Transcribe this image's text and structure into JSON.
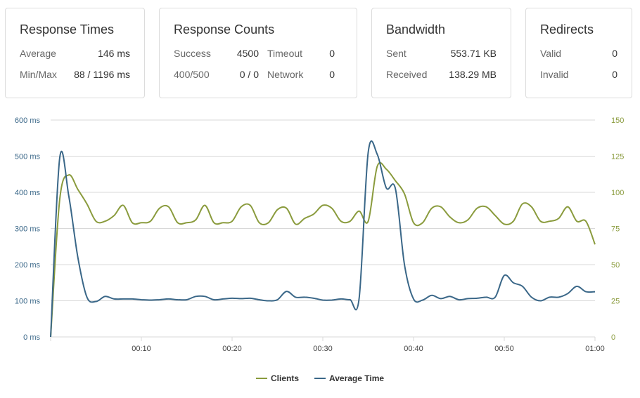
{
  "cards": {
    "response_times": {
      "title": "Response Times",
      "average_label": "Average",
      "average_value": "146 ms",
      "minmax_label": "Min/Max",
      "minmax_value": "88 / 1196 ms"
    },
    "response_counts": {
      "title": "Response Counts",
      "success_label": "Success",
      "success_value": "4500",
      "timeout_label": "Timeout",
      "timeout_value": "0",
      "errors_label": "400/500",
      "errors_value": "0 / 0",
      "network_label": "Network",
      "network_value": "0"
    },
    "bandwidth": {
      "title": "Bandwidth",
      "sent_label": "Sent",
      "sent_value": "553.71 KB",
      "received_label": "Received",
      "received_value": "138.29 MB"
    },
    "redirects": {
      "title": "Redirects",
      "valid_label": "Valid",
      "valid_value": "0",
      "invalid_label": "Invalid",
      "invalid_value": "0"
    }
  },
  "chart_data": {
    "type": "line",
    "x_ticks": [
      "00:10",
      "00:20",
      "00:30",
      "00:40",
      "00:50",
      "01:00"
    ],
    "xlim": [
      0,
      60
    ],
    "y_left": {
      "ticks": [
        "0 ms",
        "100 ms",
        "200 ms",
        "300 ms",
        "400 ms",
        "500 ms",
        "600 ms"
      ],
      "lim": [
        0,
        600
      ]
    },
    "y_right": {
      "ticks": [
        "0",
        "25",
        "50",
        "75",
        "100",
        "125",
        "150"
      ],
      "lim": [
        0,
        150
      ]
    },
    "grid": true,
    "legend_position": "bottom",
    "colors": {
      "clients": "#8a9b3d",
      "average_time": "#3a6788",
      "grid": "#d8d8d8",
      "left_axis_text": "#3a6788",
      "right_axis_text": "#8a9b3d"
    },
    "series": [
      {
        "name": "Clients",
        "axis": "right",
        "x": [
          0,
          1,
          2,
          3,
          4,
          5,
          6,
          7,
          8,
          9,
          10,
          11,
          12,
          13,
          14,
          15,
          16,
          17,
          18,
          19,
          20,
          21,
          22,
          23,
          24,
          25,
          26,
          27,
          28,
          29,
          30,
          31,
          32,
          33,
          34,
          35,
          36,
          37,
          38,
          39,
          40,
          41,
          42,
          43,
          44,
          45,
          46,
          47,
          48,
          49,
          50,
          51,
          52,
          53,
          54,
          55,
          56,
          57,
          58,
          59,
          60
        ],
        "y": [
          0,
          95,
          112,
          102,
          92,
          80,
          80,
          84,
          91,
          79,
          79,
          80,
          89,
          90,
          79,
          79,
          81,
          91,
          79,
          79,
          80,
          90,
          91,
          79,
          79,
          88,
          89,
          78,
          82,
          85,
          91,
          89,
          80,
          80,
          87,
          80,
          118,
          116,
          108,
          99,
          79,
          79,
          89,
          90,
          83,
          79,
          81,
          89,
          90,
          84,
          78,
          80,
          92,
          90,
          80,
          80,
          82,
          90,
          80,
          80,
          64
        ]
      },
      {
        "name": "Average Time",
        "axis": "left",
        "x": [
          0,
          1,
          2,
          3,
          4,
          5,
          6,
          7,
          8,
          9,
          10,
          11,
          12,
          13,
          14,
          15,
          16,
          17,
          18,
          19,
          20,
          21,
          22,
          23,
          24,
          25,
          26,
          27,
          28,
          29,
          30,
          31,
          32,
          33,
          34,
          35,
          36,
          37,
          38,
          39,
          40,
          41,
          42,
          43,
          44,
          45,
          46,
          47,
          48,
          49,
          50,
          51,
          52,
          53,
          54,
          55,
          56,
          57,
          58,
          59,
          60
        ],
        "y": [
          0,
          495,
          390,
          220,
          110,
          98,
          112,
          105,
          105,
          105,
          103,
          102,
          103,
          105,
          103,
          103,
          112,
          112,
          103,
          105,
          107,
          106,
          107,
          103,
          100,
          103,
          126,
          110,
          110,
          107,
          102,
          102,
          105,
          103,
          106,
          510,
          505,
          412,
          410,
          200,
          105,
          102,
          115,
          106,
          112,
          103,
          106,
          107,
          110,
          110,
          170,
          150,
          140,
          110,
          100,
          110,
          110,
          120,
          140,
          125,
          125
        ]
      }
    ]
  }
}
